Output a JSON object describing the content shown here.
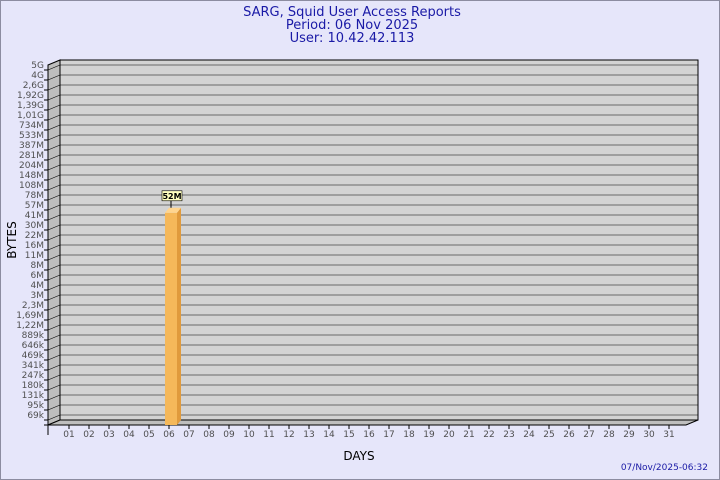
{
  "chart_data": {
    "type": "bar",
    "title": "SARG, Squid User Access Reports",
    "subtitle_period": "Period: 06 Nov 2025",
    "subtitle_user": "User: 10.42.42.113",
    "xlabel": "DAYS",
    "ylabel": "BYTES",
    "y_scale": "log",
    "grid": true,
    "y_tick_labels": [
      "5G",
      "4G",
      "2,6G",
      "1,92G",
      "1,39G",
      "1,01G",
      "734M",
      "533M",
      "387M",
      "281M",
      "204M",
      "148M",
      "108M",
      "78M",
      "57M",
      "41M",
      "30M",
      "22M",
      "16M",
      "11M",
      "8M",
      "6M",
      "4M",
      "3M",
      "2,3M",
      "1,69M",
      "1,22M",
      "889k",
      "646k",
      "469k",
      "341k",
      "247k",
      "180k",
      "131k",
      "95k",
      "69k"
    ],
    "categories": [
      "01",
      "02",
      "03",
      "04",
      "05",
      "06",
      "07",
      "08",
      "09",
      "10",
      "11",
      "12",
      "13",
      "14",
      "15",
      "16",
      "17",
      "18",
      "19",
      "20",
      "21",
      "22",
      "23",
      "24",
      "25",
      "26",
      "27",
      "28",
      "29",
      "30",
      "31"
    ],
    "values": [
      null,
      null,
      null,
      null,
      null,
      52000000,
      null,
      null,
      null,
      null,
      null,
      null,
      null,
      null,
      null,
      null,
      null,
      null,
      null,
      null,
      null,
      null,
      null,
      null,
      null,
      null,
      null,
      null,
      null,
      null,
      null
    ],
    "data_labels": {
      "06": "52M"
    },
    "bar_color": "#f5b85a",
    "plot_bg": "#d3d3d3",
    "footer_timestamp": "07/Nov/2025-06:32"
  }
}
